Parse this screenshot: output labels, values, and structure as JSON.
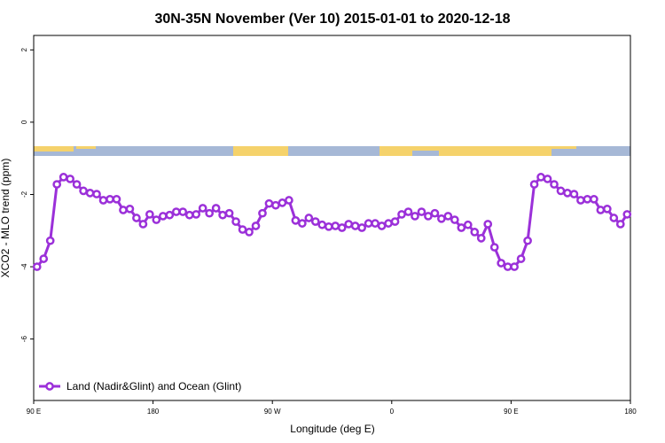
{
  "chart_data": {
    "type": "line",
    "title": "30N-35N November (Ver 10)   2015-01-01 to 2020-12-18",
    "xlabel": "Longitude (deg E)",
    "ylabel": "XCO2 - MLO trend (ppm)",
    "xlim": [
      90,
      540
    ],
    "ylim": [
      -7.7,
      2.4
    ],
    "xticks": [
      {
        "value": 90,
        "label": "90 E"
      },
      180,
      {
        "value": 270,
        "label": "90 W"
      },
      {
        "value": 360,
        "label": "0"
      },
      {
        "value": 450,
        "label": "90 E"
      },
      {
        "value": 540,
        "label": "180"
      }
    ],
    "yticks": [
      2,
      0,
      -2,
      -4,
      -6
    ],
    "legend": "bottom-left",
    "x": [
      92.5,
      97.5,
      102.5,
      107.5,
      112.5,
      117.5,
      122.5,
      127.5,
      132.5,
      137.5,
      142.5,
      147.5,
      152.5,
      157.5,
      162.5,
      167.5,
      172.5,
      177.5,
      182.5,
      187.5,
      192.5,
      197.5,
      202.5,
      207.5,
      212.5,
      217.5,
      222.5,
      227.5,
      232.5,
      237.5,
      242.5,
      247.5,
      252.5,
      257.5,
      262.5,
      267.5,
      272.5,
      277.5,
      282.5,
      287.5,
      292.5,
      297.5,
      302.5,
      307.5,
      312.5,
      317.5,
      322.5,
      327.5,
      332.5,
      337.5,
      342.5,
      347.5,
      352.5,
      357.5,
      362.5,
      367.5,
      372.5,
      377.5,
      382.5,
      387.5,
      392.5,
      397.5,
      402.5,
      407.5,
      412.5,
      417.5,
      422.5,
      427.5,
      432.5,
      437.5,
      442.5,
      447.5,
      452.5,
      457.5,
      462.5,
      467.5,
      472.5,
      477.5,
      482.5,
      487.5,
      492.5,
      497.5,
      502.5,
      507.5,
      512.5,
      517.5,
      522.5,
      527.5,
      532.5,
      537.5
    ],
    "series": [
      {
        "name": "Land (Nadir&Glint) and Ocean (Glint)",
        "color": "#9b30d9",
        "values": [
          -4.0,
          -3.78,
          -3.28,
          -1.72,
          -1.52,
          -1.57,
          -1.72,
          -1.9,
          -1.96,
          -1.99,
          -2.16,
          -2.13,
          -2.13,
          -2.43,
          -2.4,
          -2.65,
          -2.82,
          -2.55,
          -2.7,
          -2.6,
          -2.57,
          -2.48,
          -2.48,
          -2.57,
          -2.55,
          -2.38,
          -2.52,
          -2.38,
          -2.57,
          -2.52,
          -2.75,
          -2.97,
          -3.04,
          -2.87,
          -2.52,
          -2.25,
          -2.3,
          -2.23,
          -2.16,
          -2.72,
          -2.8,
          -2.65,
          -2.75,
          -2.84,
          -2.89,
          -2.87,
          -2.92,
          -2.82,
          -2.87,
          -2.92,
          -2.8,
          -2.8,
          -2.87,
          -2.8,
          -2.75,
          -2.55,
          -2.48,
          -2.6,
          -2.48,
          -2.6,
          -2.52,
          -2.67,
          -2.6,
          -2.7,
          -2.92,
          -2.84,
          -3.04,
          -3.21,
          -2.82,
          -3.46,
          -3.9,
          -4.0,
          -4.0,
          -3.78,
          -3.28,
          -1.72,
          -1.52,
          -1.57,
          -1.72,
          -1.9,
          -1.96,
          -1.99,
          -2.16,
          -2.13,
          -2.13,
          -2.43,
          -2.4,
          -2.65,
          -2.82,
          -2.55
        ]
      }
    ]
  }
}
